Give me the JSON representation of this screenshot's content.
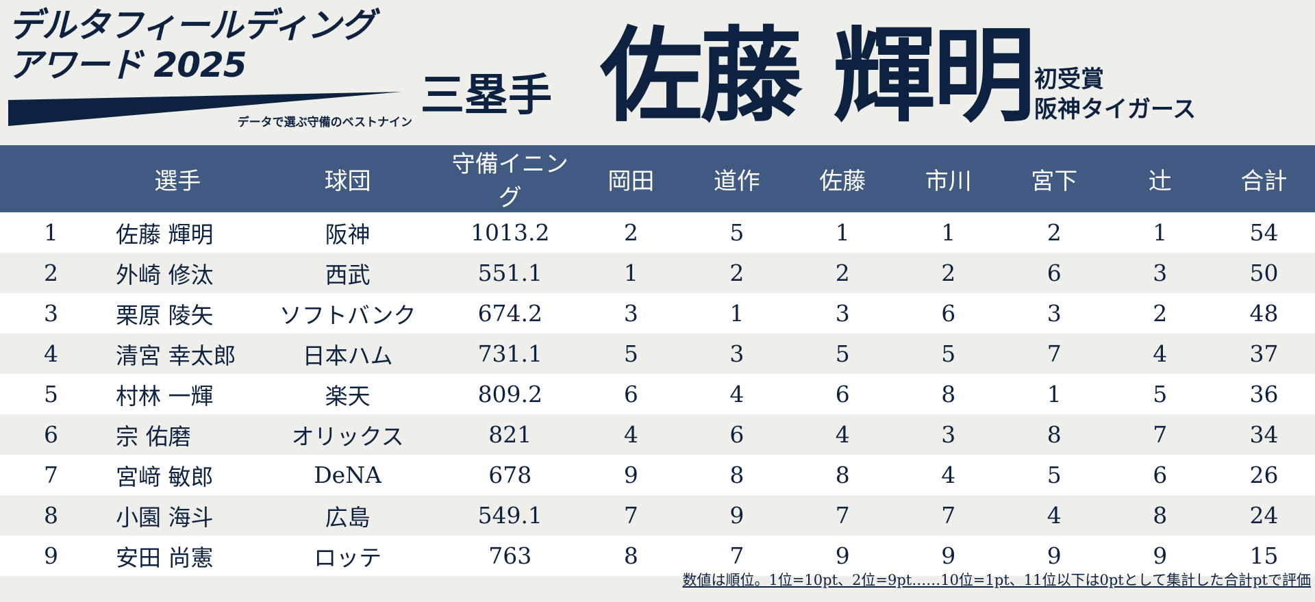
{
  "logo": {
    "title": "デルタフィールディング\nアワード 2025",
    "subtitle": "データで選ぶ守備のベストナイン"
  },
  "position": "三塁手",
  "winner": "佐藤 輝明",
  "award_note": {
    "line1": "初受賞",
    "line2": "阪神タイガース"
  },
  "table": {
    "headers": [
      "",
      "選手",
      "球団",
      "守備イニング",
      "岡田",
      "道作",
      "佐藤",
      "市川",
      "宮下",
      "辻",
      "合計"
    ],
    "rows": [
      [
        "1",
        "佐藤 輝明",
        "阪神",
        "1013.2",
        "2",
        "5",
        "1",
        "1",
        "2",
        "1",
        "54"
      ],
      [
        "2",
        "外崎 修汰",
        "西武",
        "551.1",
        "1",
        "2",
        "2",
        "2",
        "6",
        "3",
        "50"
      ],
      [
        "3",
        "栗原 陵矢",
        "ソフトバンク",
        "674.2",
        "3",
        "1",
        "3",
        "6",
        "3",
        "2",
        "48"
      ],
      [
        "4",
        "清宮 幸太郎",
        "日本ハム",
        "731.1",
        "5",
        "3",
        "5",
        "5",
        "7",
        "4",
        "37"
      ],
      [
        "5",
        "村林 一輝",
        "楽天",
        "809.2",
        "6",
        "4",
        "6",
        "8",
        "1",
        "5",
        "36"
      ],
      [
        "6",
        "宗 佑磨",
        "オリックス",
        "821",
        "4",
        "6",
        "4",
        "3",
        "8",
        "7",
        "34"
      ],
      [
        "7",
        "宮﨑 敏郎",
        "DeNA",
        "678",
        "9",
        "8",
        "8",
        "4",
        "5",
        "6",
        "26"
      ],
      [
        "8",
        "小園 海斗",
        "広島",
        "549.1",
        "7",
        "9",
        "7",
        "7",
        "4",
        "8",
        "24"
      ],
      [
        "9",
        "安田 尚憲",
        "ロッテ",
        "763",
        "8",
        "7",
        "9",
        "9",
        "9",
        "9",
        "15"
      ]
    ]
  },
  "footnote": "数値は順位。1位=10pt、2位=9pt……10位=1pt、11位以下は0ptとして集計した合計ptで評価",
  "colors": {
    "navy": "#0d2240",
    "header_blue": "#405a82",
    "background": "#eeeeea"
  }
}
